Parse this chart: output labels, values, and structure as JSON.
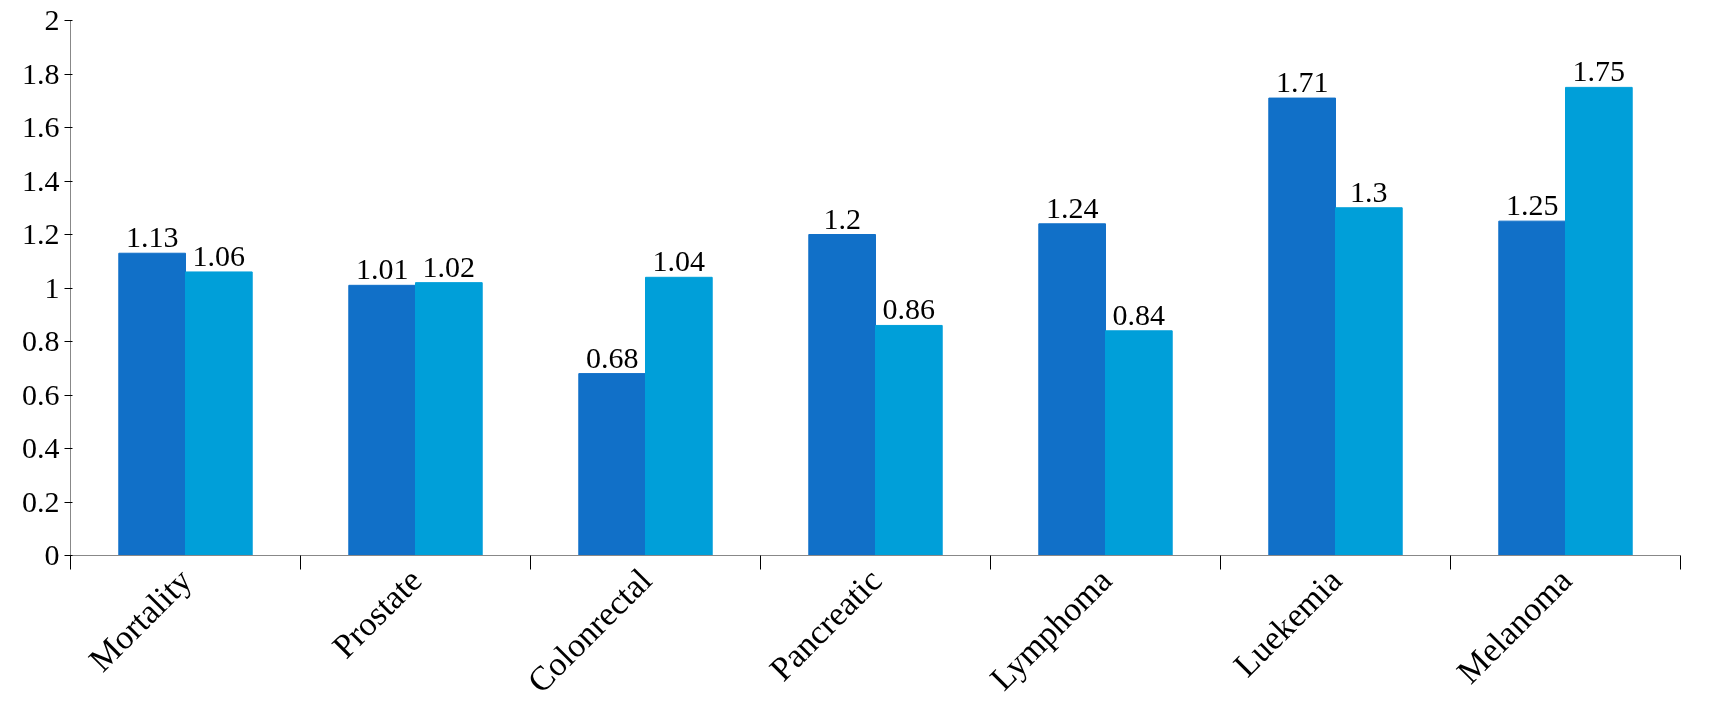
{
  "chart_data": {
    "type": "bar",
    "categories": [
      "Mortality",
      "Prostate",
      "Colonrectal",
      "Pancreatic",
      "Lymphoma",
      "Luekemia",
      "Melanoma"
    ],
    "series": [
      {
        "color": "#1170c8",
        "values": [
          1.13,
          1.01,
          0.68,
          1.2,
          1.24,
          1.71,
          1.25
        ]
      },
      {
        "color": "#009fd9",
        "values": [
          1.06,
          1.02,
          1.04,
          0.86,
          0.84,
          1.3,
          1.75
        ]
      }
    ],
    "ylim": [
      0,
      2
    ],
    "yticks": [
      0,
      0.2,
      0.4,
      0.6,
      0.8,
      1,
      1.2,
      1.4,
      1.6,
      1.8,
      2
    ],
    "data_labels": true
  }
}
